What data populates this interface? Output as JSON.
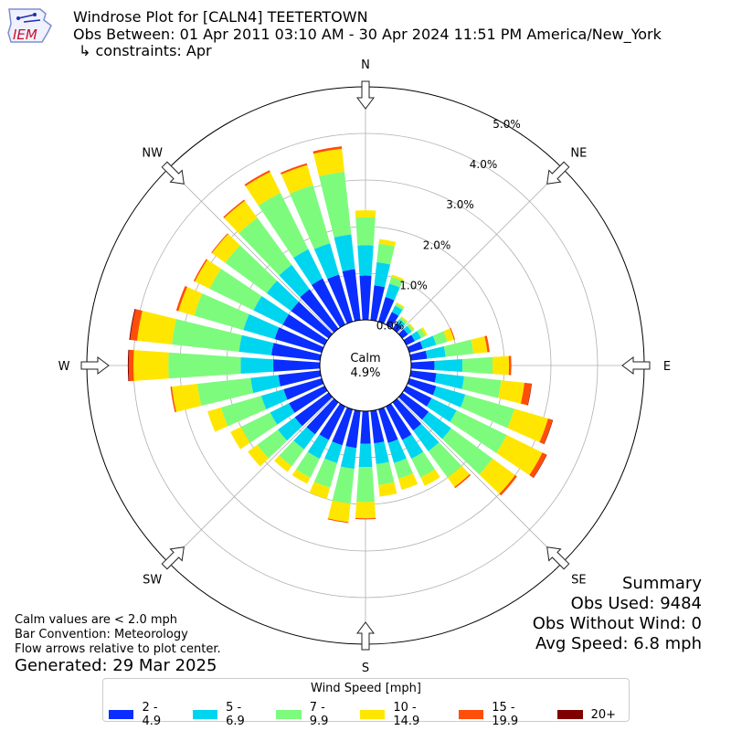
{
  "header": {
    "title": "Windrose Plot for [CALN4] TEETERTOWN",
    "subtitle": "Obs Between: 01 Apr 2011 03:10 AM - 30 Apr 2024 11:51 PM America/New_York",
    "constraints": "↳ constraints: Apr",
    "logo_text": "IEM"
  },
  "summary": {
    "heading": "Summary",
    "obs_used": "Obs Used: 9484",
    "obs_without_wind": "Obs Without Wind: 0",
    "avg_speed": "Avg Speed: 6.8 mph"
  },
  "notes": {
    "calm": "Calm values are < 2.0 mph",
    "convention": "Bar Convention: Meteorology",
    "flow": "Flow arrows relative to plot center."
  },
  "generated": "Generated: 29 Mar 2025",
  "chart_data": {
    "type": "windrose",
    "center_label": "Calm",
    "calm_percent": "4.9%",
    "radial_ticks": [
      "0.0%",
      "1.0%",
      "2.0%",
      "3.0%",
      "4.0%",
      "5.0%"
    ],
    "radial_range": [
      0,
      5.0
    ],
    "directions_labels": [
      "N",
      "NE",
      "E",
      "SE",
      "S",
      "SW",
      "W",
      "NW"
    ],
    "bin_count": 36,
    "bin_centers_deg": [
      0,
      10,
      20,
      30,
      40,
      50,
      60,
      70,
      80,
      90,
      100,
      110,
      120,
      130,
      140,
      150,
      160,
      170,
      180,
      190,
      200,
      210,
      220,
      230,
      240,
      250,
      260,
      270,
      280,
      290,
      300,
      310,
      320,
      330,
      340,
      350
    ],
    "legend_title": "Wind Speed [mph]",
    "series": [
      {
        "name": "2 - 4.9",
        "color": "#0a2eff",
        "values": [
          0.95,
          0.75,
          0.55,
          0.3,
          0.15,
          0.15,
          0.2,
          0.3,
          0.35,
          0.5,
          0.55,
          0.6,
          0.6,
          0.7,
          0.75,
          0.8,
          0.75,
          0.7,
          0.7,
          0.8,
          0.8,
          0.8,
          0.85,
          0.9,
          0.85,
          0.85,
          0.9,
          1.0,
          1.05,
          1.05,
          1.0,
          1.0,
          1.05,
          1.1,
          1.05,
          1.1
        ]
      },
      {
        "name": "5 - 6.9",
        "color": "#00d5f0",
        "values": [
          0.65,
          0.5,
          0.3,
          0.15,
          0.1,
          0.1,
          0.15,
          0.3,
          0.4,
          0.6,
          0.6,
          0.65,
          0.6,
          0.6,
          0.55,
          0.45,
          0.45,
          0.45,
          0.5,
          0.45,
          0.4,
          0.45,
          0.4,
          0.45,
          0.45,
          0.5,
          0.6,
          0.7,
          0.7,
          0.7,
          0.7,
          0.65,
          0.65,
          0.7,
          0.7,
          0.75
        ]
      },
      {
        "name": "7 - 9.9",
        "color": "#7dfb7d",
        "values": [
          0.6,
          0.4,
          0.15,
          0.05,
          0.05,
          0.05,
          0.1,
          0.25,
          0.6,
          0.65,
          0.8,
          1.1,
          1.2,
          1.1,
          0.7,
          0.45,
          0.35,
          0.45,
          0.75,
          0.75,
          0.55,
          0.45,
          0.45,
          0.55,
          0.7,
          0.9,
          1.15,
          1.55,
          1.45,
          1.1,
          1.05,
          1.1,
          1.25,
          1.35,
          1.3,
          1.35
        ]
      },
      {
        "name": "10 - 14.9",
        "color": "#ffe600",
        "values": [
          0.15,
          0.1,
          0.05,
          0.03,
          0.03,
          0.03,
          0.05,
          0.15,
          0.3,
          0.35,
          0.5,
          0.75,
          0.85,
          0.6,
          0.25,
          0.2,
          0.25,
          0.25,
          0.35,
          0.4,
          0.25,
          0.15,
          0.15,
          0.25,
          0.25,
          0.3,
          0.55,
          0.75,
          0.75,
          0.35,
          0.35,
          0.35,
          0.45,
          0.5,
          0.45,
          0.5
        ]
      },
      {
        "name": "15 - 19.9",
        "color": "#ff4d0a",
        "values": [
          0,
          0,
          0,
          0,
          0,
          0,
          0,
          0.02,
          0.05,
          0.05,
          0.15,
          0.1,
          0.1,
          0.05,
          0.03,
          0,
          0,
          0,
          0.02,
          0.02,
          0,
          0,
          0,
          0,
          0,
          0,
          0.03,
          0.1,
          0.15,
          0.05,
          0.03,
          0.02,
          0.03,
          0.04,
          0.04,
          0.05
        ]
      },
      {
        "name": "20+",
        "color": "#800000",
        "values": [
          0,
          0,
          0,
          0,
          0,
          0,
          0,
          0,
          0,
          0,
          0.01,
          0.01,
          0.01,
          0,
          0,
          0,
          0,
          0,
          0,
          0,
          0,
          0,
          0,
          0,
          0,
          0,
          0,
          0.02,
          0.02,
          0,
          0,
          0,
          0,
          0,
          0,
          0
        ]
      }
    ]
  }
}
